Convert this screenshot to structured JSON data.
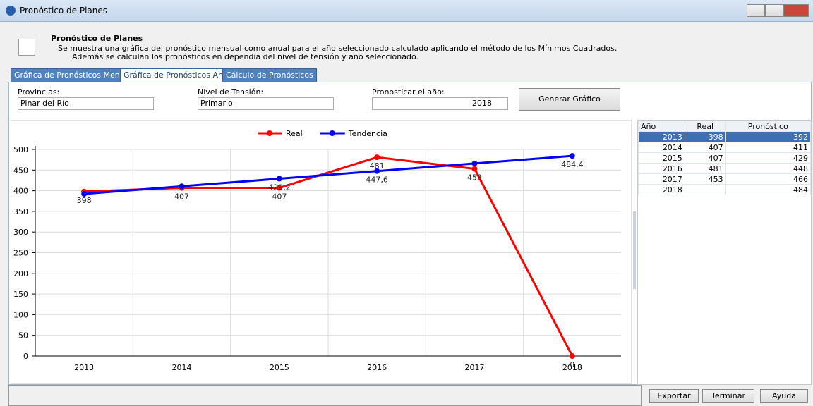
{
  "window": {
    "title": "Pronóstico de Planes"
  },
  "header": {
    "title": "Pronóstico de Planes",
    "lines": [
      "Se muestra una gráfica del pronóstico mensual como anual para el año seleccionado calculado aplicando el método de los Mínimos Cuadrados.",
      "Además se calculan los pronósticos en dependia del nivel de tensión y año seleccionado."
    ]
  },
  "tabs": [
    "Gráfica de Pronósticos Mensual",
    "Gráfica de Pronósticos Anual",
    "Cálculo de Pronósticos"
  ],
  "filters": {
    "provincias": {
      "label": "Provincias:",
      "value": "Pinar del Río"
    },
    "nivel": {
      "label": "Nivel de Tensión:",
      "value": "Primario"
    },
    "anio": {
      "label": "Pronosticar el año:",
      "value": "2018"
    },
    "button": "Generar Gráfico"
  },
  "table": {
    "columns": [
      "Año",
      "Real",
      "Pronóstico"
    ],
    "rows": [
      [
        "2013",
        "398",
        "392"
      ],
      [
        "2014",
        "407",
        "411"
      ],
      [
        "2015",
        "407",
        "429"
      ],
      [
        "2016",
        "481",
        "448"
      ],
      [
        "2017",
        "453",
        "466"
      ],
      [
        "2018",
        null,
        "484"
      ]
    ]
  },
  "buttons": [
    "Exportar",
    "Terminar",
    "Ayuda"
  ],
  "chart_data": {
    "type": "line",
    "categories": [
      "2013",
      "2014",
      "2015",
      "2016",
      "2017",
      "2018"
    ],
    "series": [
      {
        "name": "Real",
        "color": "#ff0000",
        "values": [
          398,
          407,
          407,
          481,
          453,
          0
        ]
      },
      {
        "name": "Tendencia",
        "color": "#0000ff",
        "values": [
          392.4,
          410.8,
          429.2,
          447.6,
          466,
          484.4
        ],
        "value_labels": [
          null,
          null,
          "429,2",
          "447,6",
          null,
          "484,4"
        ]
      }
    ],
    "ylim": [
      0,
      500
    ],
    "yticks": [
      0,
      50,
      100,
      150,
      200,
      250,
      300,
      350,
      400,
      450,
      500
    ],
    "grid": true,
    "legend": "top"
  }
}
